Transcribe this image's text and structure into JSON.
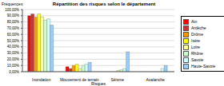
{
  "chart_data": {
    "type": "bar",
    "title": "Répartition des risques selon le département",
    "y_label": "Fréquences",
    "x_label": "Risques",
    "categories": [
      "Inondation",
      "Mouvement de terrain",
      "Séisme",
      "Avalanche"
    ],
    "series": [
      {
        "name": "Ain",
        "color": "#FF0000",
        "values": [
          90,
          8,
          0,
          0
        ]
      },
      {
        "name": "Ardèche",
        "color": "#CC3333",
        "values": [
          93,
          5,
          0,
          0
        ]
      },
      {
        "name": "Drôme",
        "color": "#FF9900",
        "values": [
          88,
          10,
          0,
          0
        ]
      },
      {
        "name": "Isère",
        "color": "#FFFF00",
        "values": [
          93,
          12,
          0,
          0
        ]
      },
      {
        "name": "Loire",
        "color": "#FFFF99",
        "values": [
          88,
          5,
          2,
          0
        ]
      },
      {
        "name": "Rhône",
        "color": "#CCFFCC",
        "values": [
          83,
          10,
          3,
          0
        ]
      },
      {
        "name": "Savoie",
        "color": "#CCFFFF",
        "values": [
          85,
          12,
          5,
          5
        ]
      },
      {
        "name": "Haute-Savoie",
        "color": "#99CCFF",
        "values": [
          75,
          15,
          32,
          10
        ]
      }
    ],
    "ylim": [
      0,
      100
    ],
    "yticks": [
      {
        "value": 0,
        "label": "0,00%"
      },
      {
        "value": 10,
        "label": "10,00%"
      },
      {
        "value": 20,
        "label": "20,00%"
      },
      {
        "value": 30,
        "label": "30,00%"
      },
      {
        "value": 40,
        "label": "40,00%"
      },
      {
        "value": 50,
        "label": "50,00%"
      },
      {
        "value": 60,
        "label": "60,00%"
      },
      {
        "value": 70,
        "label": "70,00%"
      },
      {
        "value": 80,
        "label": "80,00%"
      },
      {
        "value": 90,
        "label": "90,00%"
      },
      {
        "value": 100,
        "label": "100,00%"
      }
    ],
    "grid": true,
    "legend": "right"
  }
}
